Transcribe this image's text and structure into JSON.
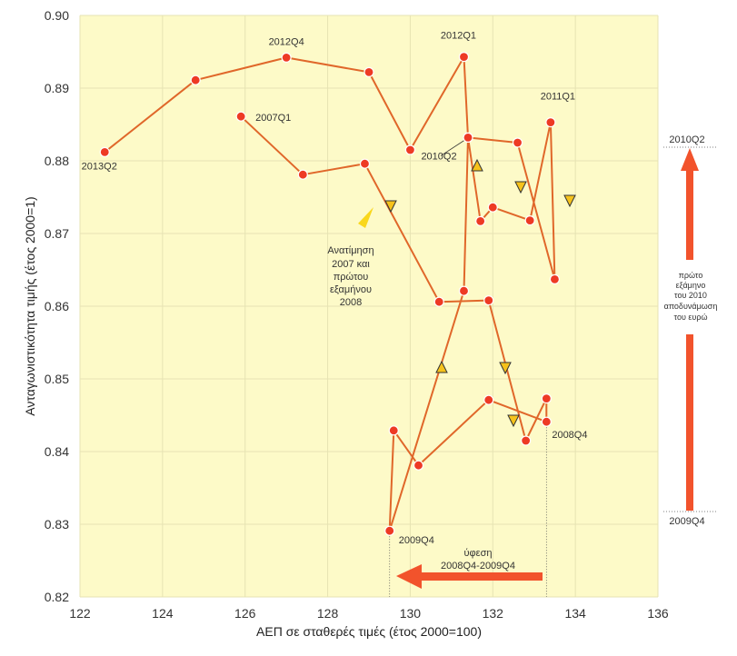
{
  "chart_data": {
    "type": "line",
    "xlabel": "ΑΕΠ σε σταθερές τιμές (έτος 2000=100)",
    "ylabel": "Ανταγωνιστικότητα τιμής (έτος 2000=1)",
    "xlim": [
      122,
      136
    ],
    "ylim": [
      0.82,
      0.9
    ],
    "x_ticks": [
      "122",
      "124",
      "126",
      "128",
      "130",
      "132",
      "134",
      "136"
    ],
    "y_ticks": [
      "0.82",
      "0.83",
      "0.84",
      "0.85",
      "0.86",
      "0.87",
      "0.88",
      "0.89",
      "0.90"
    ],
    "grid": true,
    "colors": {
      "plot_bg": "#fdfac8",
      "line": "#e0672a",
      "marker": "#ee3a24",
      "arrow": "#f2532c",
      "triangle": "#f6c21b"
    },
    "series": [
      {
        "points": [
          {
            "label": "2007Q1",
            "x": 125.9,
            "y": 0.8861
          },
          {
            "label": "",
            "x": 127.4,
            "y": 0.8781
          },
          {
            "label": "",
            "x": 128.9,
            "y": 0.8796
          },
          {
            "label": "",
            "x": 130.7,
            "y": 0.8606
          },
          {
            "label": "",
            "x": 131.9,
            "y": 0.8608
          },
          {
            "label": "",
            "x": 132.8,
            "y": 0.8415
          },
          {
            "label": "",
            "x": 133.3,
            "y": 0.8473
          },
          {
            "label": "2008Q4",
            "x": 133.3,
            "y": 0.8441
          },
          {
            "label": "",
            "x": 131.9,
            "y": 0.8471
          },
          {
            "label": "",
            "x": 130.2,
            "y": 0.8381
          },
          {
            "label": "",
            "x": 129.6,
            "y": 0.8429
          },
          {
            "label": "2009Q4",
            "x": 129.5,
            "y": 0.8291
          },
          {
            "label": "",
            "x": 131.3,
            "y": 0.8621
          },
          {
            "label": "2010Q2",
            "x": 131.4,
            "y": 0.8832
          },
          {
            "label": "",
            "x": 131.7,
            "y": 0.8717
          },
          {
            "label": "",
            "x": 132.0,
            "y": 0.8736
          },
          {
            "label": "",
            "x": 132.9,
            "y": 0.8718
          },
          {
            "label": "2011Q1",
            "x": 133.4,
            "y": 0.8853
          },
          {
            "label": "",
            "x": 133.5,
            "y": 0.8637
          },
          {
            "label": "",
            "x": 132.6,
            "y": 0.8825
          },
          {
            "label": "",
            "x": 131.4,
            "y": 0.8832
          },
          {
            "label": "2012Q1",
            "x": 131.3,
            "y": 0.8943
          },
          {
            "label": "",
            "x": 130.0,
            "y": 0.8815
          },
          {
            "label": "",
            "x": 129.0,
            "y": 0.8922
          },
          {
            "label": "2012Q4",
            "x": 127.0,
            "y": 0.8942
          },
          {
            "label": "",
            "x": 124.8,
            "y": 0.8911
          },
          {
            "label": "2013Q2",
            "x": 122.6,
            "y": 0.8812
          }
        ]
      }
    ],
    "annotations": {
      "revaluation": [
        "Ανατίμηση",
        "2007 και",
        "πρώτου",
        "εξαμήνου",
        "2008"
      ],
      "recession": [
        "ύφεση",
        "2008Q4-2009Q4"
      ],
      "devaluation": [
        "πρώτο",
        "εξάμηνο",
        "του 2010",
        "αποδυνάμωση",
        "του ευρώ"
      ],
      "right_top": "2010Q2",
      "right_bottom": "2009Q4"
    }
  }
}
